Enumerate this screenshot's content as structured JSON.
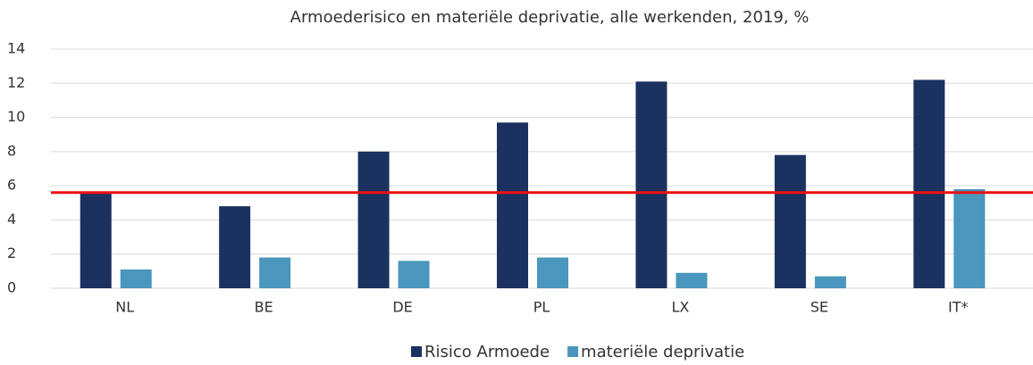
{
  "chart_data": {
    "type": "bar",
    "title": "Armoederisico en materiële deprivatie, alle werkenden, 2019, %",
    "categories": [
      "NL",
      "BE",
      "DE",
      "PL",
      "LX",
      "SE",
      "IT*"
    ],
    "series": [
      {
        "name": "Risico Armoede",
        "color": "#1b3160",
        "values": [
          5.6,
          4.8,
          8.0,
          9.7,
          12.1,
          7.8,
          12.2
        ]
      },
      {
        "name": "materiële deprivatie",
        "color": "#4a96bd",
        "values": [
          1.1,
          1.8,
          1.6,
          1.8,
          0.9,
          0.7,
          5.8
        ]
      }
    ],
    "reference_line": {
      "value": 5.6,
      "color": "#ee1111"
    },
    "ylim": [
      0,
      14
    ],
    "yticks": [
      0,
      2,
      4,
      6,
      8,
      10,
      12,
      14
    ],
    "grid": true,
    "legend": "bottom"
  }
}
